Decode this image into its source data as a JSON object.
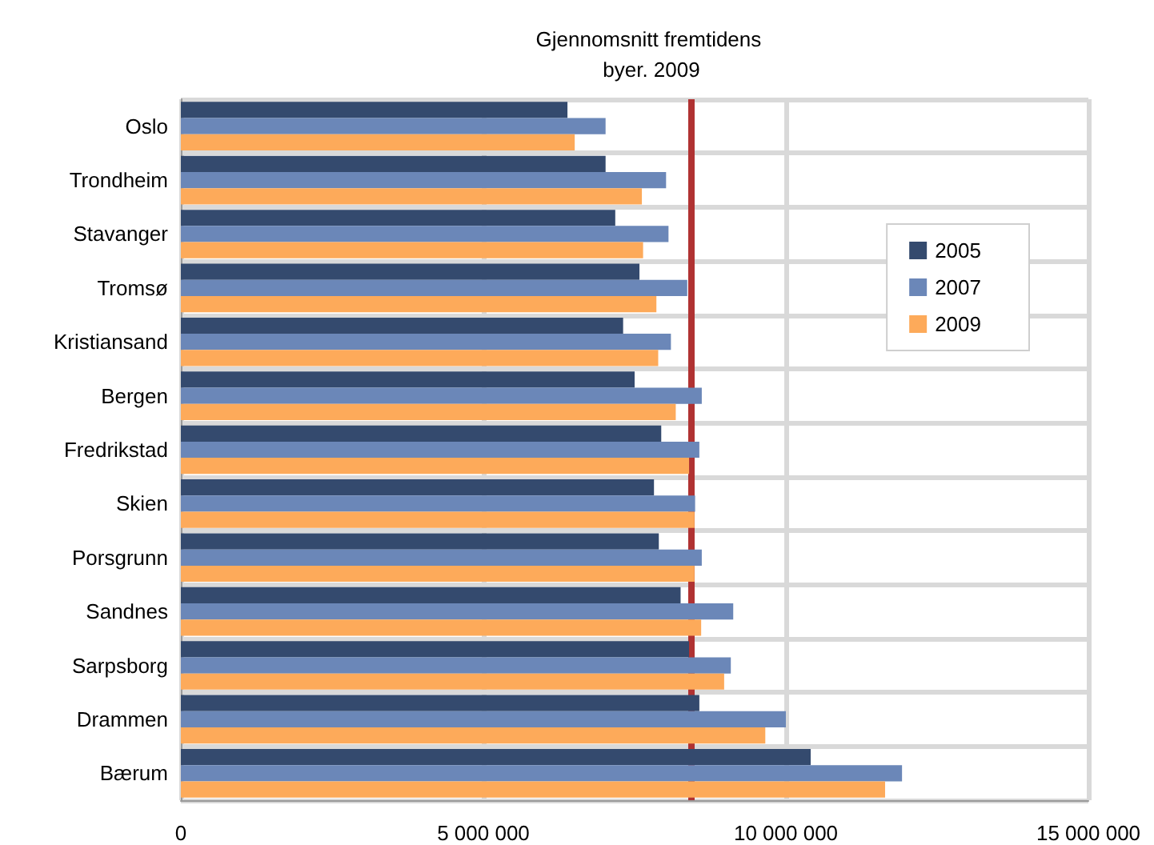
{
  "chart_data": {
    "type": "bar",
    "orientation": "horizontal",
    "title": "Gjennomsnitt fremtidens byer. 2009",
    "categories": [
      "Oslo",
      "Trondheim",
      "Stavanger",
      "Tromsø",
      "Kristiansand",
      "Bergen",
      "Fredrikstad",
      "Skien",
      "Porsgrunn",
      "Sandnes",
      "Sarpsborg",
      "Drammen",
      "Bærum"
    ],
    "series": [
      {
        "name": "2005",
        "color": "#344a6e",
        "values": [
          6390000,
          7020000,
          7180000,
          7580000,
          7310000,
          7500000,
          7940000,
          7820000,
          7900000,
          8260000,
          8400000,
          8570000,
          10410000
        ]
      },
      {
        "name": "2007",
        "color": "#6b87b8",
        "values": [
          7020000,
          8020000,
          8060000,
          8370000,
          8100000,
          8610000,
          8570000,
          8500000,
          8610000,
          9130000,
          9090000,
          10000000,
          11920000
        ]
      },
      {
        "name": "2009",
        "color": "#fdaa5a",
        "values": [
          6510000,
          7620000,
          7640000,
          7860000,
          7890000,
          8180000,
          8400000,
          8490000,
          8490000,
          8600000,
          8980000,
          9660000,
          11640000
        ]
      }
    ],
    "xlim": [
      0,
      15000000
    ],
    "xticks": [
      0,
      5000000,
      10000000,
      15000000
    ],
    "ref_lines": [
      {
        "axis": "x",
        "value": 8430000,
        "color": "#b03232"
      }
    ],
    "grid": true,
    "legend": "right"
  }
}
